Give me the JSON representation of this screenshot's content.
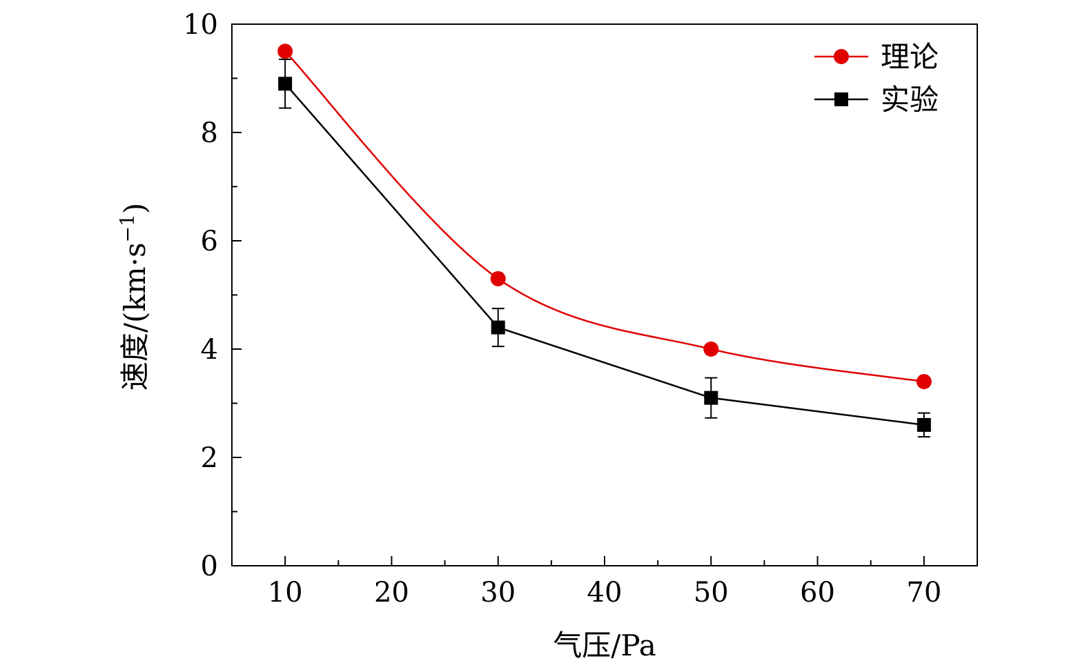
{
  "chart_data": {
    "type": "line",
    "xlabel": "气压/Pa",
    "ylabel": "速度/(km·s",
    "ylabel_exp": "−1",
    "ylabel_close": ")",
    "xlim": [
      5,
      75
    ],
    "ylim": [
      0,
      10
    ],
    "x_ticks": [
      10,
      20,
      30,
      40,
      50,
      60,
      70
    ],
    "y_ticks": [
      0,
      2,
      4,
      6,
      8,
      10
    ],
    "x_minor_ticks": [
      15,
      25,
      35,
      45,
      55,
      65
    ],
    "y_minor_ticks": [
      1,
      3,
      5,
      7,
      9
    ],
    "legend_position": "top-right",
    "series": [
      {
        "name": "理论",
        "color": "#e00000",
        "marker": "circle",
        "smooth": true,
        "x": [
          10,
          30,
          50,
          70
        ],
        "y": [
          9.5,
          5.3,
          4.0,
          3.4
        ]
      },
      {
        "name": "实验",
        "color": "#000000",
        "marker": "square",
        "smooth": false,
        "x": [
          10,
          30,
          50,
          70
        ],
        "y": [
          8.9,
          4.4,
          3.1,
          2.6
        ],
        "error": [
          0.45,
          0.35,
          0.37,
          0.22
        ]
      }
    ]
  }
}
